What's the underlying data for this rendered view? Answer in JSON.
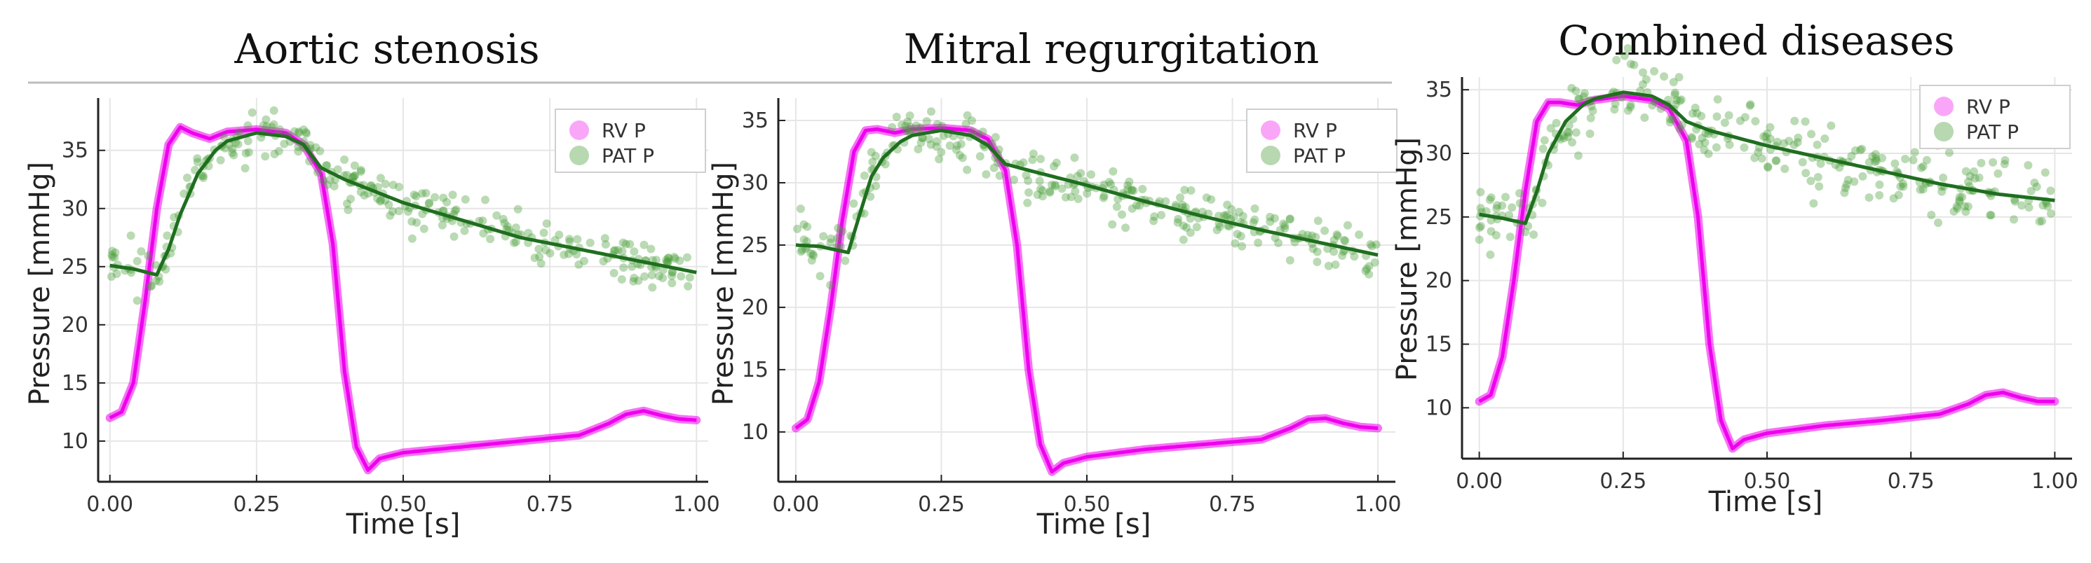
{
  "colors": {
    "rv": "#ee00ee",
    "pat_points": "#4a9d3a",
    "pat_line": "#1f6e1f",
    "grid": "#e6e6e6",
    "axis": "#222222"
  },
  "chart_data": [
    {
      "type": "line",
      "title": "Aortic stenosis",
      "xlabel": "Time [s]",
      "ylabel": "Pressure [mmHg]",
      "xlim": [
        -0.02,
        1.02
      ],
      "ylim": [
        6.5,
        39.5
      ],
      "xticks": [
        0.0,
        0.25,
        0.5,
        0.75,
        1.0
      ],
      "xtick_labels": [
        "0.00",
        "0.25",
        "0.50",
        "0.75",
        "1.00"
      ],
      "yticks": [
        10,
        15,
        20,
        25,
        30,
        35
      ],
      "ytick_labels": [
        "10",
        "15",
        "20",
        "25",
        "30",
        "35"
      ],
      "legend": [
        "RV P",
        "PAT P"
      ],
      "legend_position": "top-right",
      "series": [
        {
          "name": "RV P",
          "style": "thick-line",
          "x": [
            0.0,
            0.02,
            0.04,
            0.06,
            0.08,
            0.1,
            0.12,
            0.14,
            0.17,
            0.2,
            0.25,
            0.3,
            0.33,
            0.36,
            0.38,
            0.4,
            0.42,
            0.44,
            0.46,
            0.5,
            0.6,
            0.7,
            0.8,
            0.85,
            0.88,
            0.91,
            0.94,
            0.97,
            1.0
          ],
          "y": [
            12.0,
            12.5,
            15.0,
            22.0,
            30.0,
            35.5,
            37.0,
            36.5,
            36.0,
            36.6,
            36.8,
            36.5,
            35.5,
            33.0,
            27.0,
            16.0,
            9.5,
            7.5,
            8.5,
            9.0,
            9.5,
            10.0,
            10.5,
            11.5,
            12.3,
            12.6,
            12.2,
            11.9,
            11.8
          ]
        },
        {
          "name": "PAT P fit",
          "style": "line",
          "x": [
            0.0,
            0.04,
            0.08,
            0.1,
            0.12,
            0.15,
            0.18,
            0.2,
            0.25,
            0.3,
            0.33,
            0.36,
            0.4,
            0.5,
            0.6,
            0.7,
            0.8,
            0.9,
            1.0
          ],
          "y": [
            25.1,
            24.8,
            24.3,
            26.5,
            29.5,
            33.0,
            35.0,
            35.8,
            36.5,
            36.2,
            35.5,
            33.5,
            32.5,
            30.5,
            29.0,
            27.5,
            26.5,
            25.5,
            24.5
          ]
        },
        {
          "name": "PAT P",
          "style": "scatter",
          "noise": 1.0,
          "count": 300
        }
      ]
    },
    {
      "type": "line",
      "title": "Mitral regurgitation",
      "xlabel": "Time [s]",
      "ylabel": "Pressure [mmHg]",
      "xlim": [
        -0.03,
        1.03
      ],
      "ylim": [
        6.0,
        36.8
      ],
      "xticks": [
        0.0,
        0.25,
        0.5,
        0.75,
        1.0
      ],
      "xtick_labels": [
        "0.00",
        "0.25",
        "0.50",
        "0.75",
        "1.00"
      ],
      "yticks": [
        10,
        15,
        20,
        25,
        30,
        35
      ],
      "ytick_labels": [
        "10",
        "15",
        "20",
        "25",
        "30",
        "35"
      ],
      "legend": [
        "RV P",
        "PAT P"
      ],
      "legend_position": "top-right",
      "series": [
        {
          "name": "RV P",
          "style": "thick-line",
          "x": [
            0.0,
            0.02,
            0.04,
            0.06,
            0.08,
            0.1,
            0.12,
            0.14,
            0.17,
            0.2,
            0.25,
            0.3,
            0.33,
            0.36,
            0.38,
            0.4,
            0.42,
            0.44,
            0.46,
            0.5,
            0.6,
            0.7,
            0.8,
            0.85,
            0.88,
            0.91,
            0.94,
            0.97,
            1.0
          ],
          "y": [
            10.3,
            11.0,
            14.0,
            20.0,
            27.0,
            32.5,
            34.2,
            34.3,
            34.0,
            34.3,
            34.4,
            34.2,
            33.5,
            31.0,
            25.0,
            15.0,
            9.0,
            6.8,
            7.5,
            8.0,
            8.6,
            9.0,
            9.4,
            10.3,
            11.0,
            11.1,
            10.7,
            10.4,
            10.3
          ]
        },
        {
          "name": "PAT P fit",
          "style": "line",
          "x": [
            0.0,
            0.04,
            0.09,
            0.11,
            0.13,
            0.15,
            0.18,
            0.2,
            0.25,
            0.3,
            0.33,
            0.36,
            0.4,
            0.5,
            0.6,
            0.7,
            0.8,
            0.9,
            1.0
          ],
          "y": [
            25.0,
            24.9,
            24.4,
            27.5,
            30.5,
            32.0,
            33.3,
            33.8,
            34.2,
            33.8,
            33.0,
            31.5,
            31.0,
            29.8,
            28.5,
            27.3,
            26.2,
            25.2,
            24.2
          ]
        },
        {
          "name": "PAT P",
          "style": "scatter",
          "noise": 1.0,
          "count": 300
        }
      ]
    },
    {
      "type": "line",
      "title": "Combined diseases",
      "xlabel": "Time [s]",
      "ylabel": "Pressure [mmHg]",
      "xlim": [
        -0.03,
        1.03
      ],
      "ylim": [
        6.0,
        36.0
      ],
      "xticks": [
        0.0,
        0.25,
        0.5,
        0.75,
        1.0
      ],
      "xtick_labels": [
        "0.00",
        "0.25",
        "0.50",
        "0.75",
        "1.00"
      ],
      "yticks": [
        10,
        15,
        20,
        25,
        30,
        35
      ],
      "ytick_labels": [
        "10",
        "15",
        "20",
        "25",
        "30",
        "35"
      ],
      "legend": [
        "RV P",
        "PAT P"
      ],
      "legend_position": "top-right",
      "series": [
        {
          "name": "RV P",
          "style": "thick-line",
          "x": [
            0.0,
            0.02,
            0.04,
            0.06,
            0.08,
            0.1,
            0.12,
            0.14,
            0.17,
            0.2,
            0.25,
            0.3,
            0.33,
            0.36,
            0.38,
            0.4,
            0.42,
            0.44,
            0.46,
            0.5,
            0.6,
            0.7,
            0.8,
            0.85,
            0.88,
            0.91,
            0.94,
            0.97,
            1.0
          ],
          "y": [
            10.5,
            11.0,
            14.0,
            20.0,
            27.0,
            32.5,
            34.0,
            34.0,
            33.8,
            34.2,
            34.5,
            34.2,
            33.5,
            31.0,
            25.0,
            15.0,
            9.0,
            6.8,
            7.5,
            8.0,
            8.6,
            9.0,
            9.5,
            10.3,
            11.0,
            11.2,
            10.8,
            10.5,
            10.5
          ]
        },
        {
          "name": "PAT P fit",
          "style": "line",
          "x": [
            0.0,
            0.04,
            0.08,
            0.1,
            0.12,
            0.15,
            0.18,
            0.2,
            0.25,
            0.3,
            0.33,
            0.36,
            0.4,
            0.5,
            0.6,
            0.7,
            0.8,
            0.9,
            1.0
          ],
          "y": [
            25.2,
            24.9,
            24.5,
            27.0,
            30.0,
            32.5,
            33.8,
            34.3,
            34.8,
            34.5,
            33.8,
            32.5,
            31.8,
            30.6,
            29.6,
            28.6,
            27.6,
            26.8,
            26.3
          ]
        },
        {
          "name": "PAT P",
          "style": "scatter",
          "noise": 1.3,
          "count": 300
        }
      ]
    }
  ]
}
